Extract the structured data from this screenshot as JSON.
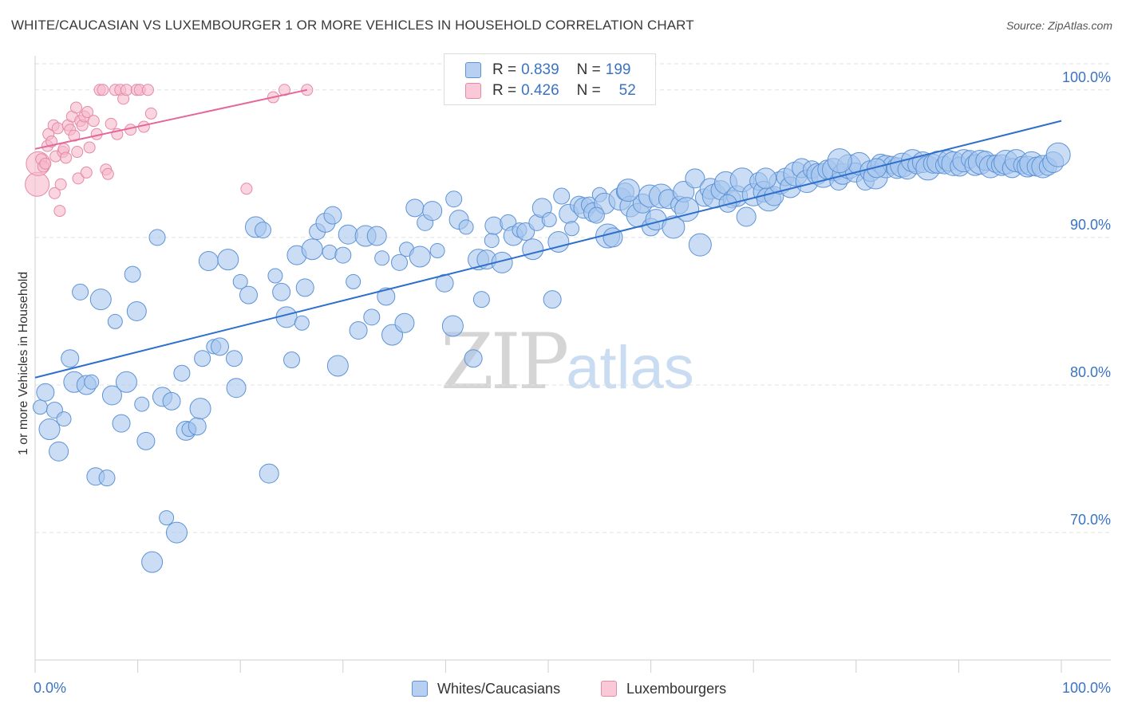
{
  "header": {
    "title": "WHITE/CAUCASIAN VS LUXEMBOURGER 1 OR MORE VEHICLES IN HOUSEHOLD CORRELATION CHART",
    "source": "Source: ZipAtlas.com"
  },
  "watermark": {
    "zip": "ZIP",
    "atlas": "atlas"
  },
  "legend": {
    "series": [
      {
        "r_label": "R =",
        "r_value": "0.839",
        "n_label": "N =",
        "n_value": "199",
        "color": "#9dbfe8",
        "border": "#5b8fd4"
      },
      {
        "r_label": "R =",
        "r_value": "0.426",
        "n_label": "N =",
        "n_value": "52",
        "color": "#f8b6ca",
        "border": "#e97aa0"
      }
    ]
  },
  "bottom_legend": [
    "Whites/Caucasians",
    "Luxembourgers"
  ],
  "colors": {
    "blue_fill": "#a7c6ee",
    "blue_stroke": "#5d93d6",
    "blue_line": "#2e6fcc",
    "pink_fill": "#f6b9cc",
    "pink_stroke": "#e48aa8",
    "pink_line": "#e5669a",
    "axis_text": "#3b73c4",
    "grid": "#e2e2e2"
  },
  "chart_data": {
    "type": "scatter",
    "title": "WHITE/CAUCASIAN VS LUXEMBOURGER 1 OR MORE VEHICLES IN HOUSEHOLD CORRELATION CHART",
    "xlabel": "",
    "ylabel": "1 or more Vehicles in Household",
    "xlim": [
      0,
      100
    ],
    "ylim": [
      60.5,
      101.5
    ],
    "x_tick_labels": [
      "0.0%",
      "100.0%"
    ],
    "y_ticks": [
      70,
      80,
      90,
      100
    ],
    "y_tick_labels": [
      "70.0%",
      "80.0%",
      "90.0%",
      "100.0%"
    ],
    "grid": true,
    "legend_position": "top-center",
    "series": [
      {
        "name": "Whites/Caucasians",
        "trend": [
          [
            0,
            80.5
          ],
          [
            100,
            97.9
          ]
        ],
        "points": [
          [
            0.5,
            78.5
          ],
          [
            1,
            79.5
          ],
          [
            1.4,
            77
          ],
          [
            1.9,
            78.3
          ],
          [
            2.3,
            75.5
          ],
          [
            2.8,
            77.7
          ],
          [
            3.4,
            81.8
          ],
          [
            3.8,
            80.2
          ],
          [
            4.4,
            86.3
          ],
          [
            5,
            80
          ],
          [
            5.5,
            80.2
          ],
          [
            5.9,
            73.8
          ],
          [
            6.4,
            85.8
          ],
          [
            7,
            73.7
          ],
          [
            7.5,
            79.3
          ],
          [
            7.8,
            84.3
          ],
          [
            8.4,
            77.4
          ],
          [
            8.9,
            80.2
          ],
          [
            9.5,
            87.5
          ],
          [
            9.9,
            85
          ],
          [
            10.4,
            78.7
          ],
          [
            10.8,
            76.2
          ],
          [
            11.4,
            68
          ],
          [
            11.9,
            90
          ],
          [
            12.4,
            79.2
          ],
          [
            12.8,
            71
          ],
          [
            13.3,
            78.9
          ],
          [
            13.8,
            70
          ],
          [
            14.3,
            80.8
          ],
          [
            14.7,
            76.9
          ],
          [
            15,
            77
          ],
          [
            15.8,
            77.2
          ],
          [
            16.1,
            78.4
          ],
          [
            16.3,
            81.8
          ],
          [
            16.9,
            88.4
          ],
          [
            17.4,
            82.6
          ],
          [
            18,
            82.6
          ],
          [
            18.8,
            88.5
          ],
          [
            19.4,
            81.8
          ],
          [
            19.6,
            79.8
          ],
          [
            20,
            87
          ],
          [
            20.8,
            86.1
          ],
          [
            21.5,
            90.7
          ],
          [
            22.2,
            90.5
          ],
          [
            22.8,
            74
          ],
          [
            23.4,
            87.4
          ],
          [
            24,
            86.3
          ],
          [
            24.5,
            84.6
          ],
          [
            25,
            81.7
          ],
          [
            25.5,
            88.8
          ],
          [
            26,
            84.2
          ],
          [
            26.3,
            86.6
          ],
          [
            27,
            89.2
          ],
          [
            27.5,
            90.4
          ],
          [
            28.3,
            91
          ],
          [
            28.7,
            89
          ],
          [
            29,
            91.5
          ],
          [
            29.5,
            81.3
          ],
          [
            30,
            88.8
          ],
          [
            30.5,
            90.2
          ],
          [
            31,
            87
          ],
          [
            31.5,
            83.7
          ],
          [
            32.2,
            90.1
          ],
          [
            32.8,
            84.6
          ],
          [
            33.3,
            90.1
          ],
          [
            33.8,
            88.6
          ],
          [
            34.2,
            86
          ],
          [
            34.8,
            83.4
          ],
          [
            35.5,
            88.3
          ],
          [
            36,
            84.2
          ],
          [
            36.2,
            89.2
          ],
          [
            37,
            92
          ],
          [
            37.5,
            88.7
          ],
          [
            38,
            91
          ],
          [
            38.7,
            91.8
          ],
          [
            39.2,
            89.1
          ],
          [
            39.9,
            86.9
          ],
          [
            40.7,
            84
          ],
          [
            40.8,
            92.6
          ],
          [
            41.3,
            91.2
          ],
          [
            42,
            90.7
          ],
          [
            42.7,
            81.8
          ],
          [
            43.2,
            88.5
          ],
          [
            43.5,
            85.8
          ],
          [
            44,
            88.5
          ],
          [
            44.5,
            89.8
          ],
          [
            44.7,
            90.8
          ],
          [
            45.5,
            88.3
          ],
          [
            46.1,
            91
          ],
          [
            46.6,
            90.1
          ],
          [
            47.2,
            90.5
          ],
          [
            47.8,
            90.4
          ],
          [
            48.5,
            89.2
          ],
          [
            48.9,
            91
          ],
          [
            49.4,
            92
          ],
          [
            50.1,
            91.2
          ],
          [
            50.4,
            85.8
          ],
          [
            51,
            89.7
          ],
          [
            51.3,
            92.8
          ],
          [
            52,
            91.6
          ],
          [
            52.3,
            90.6
          ],
          [
            53,
            92.2
          ],
          [
            53.5,
            92
          ],
          [
            54,
            92.2
          ],
          [
            54.4,
            91.7
          ],
          [
            55,
            92.9
          ],
          [
            55.5,
            92.3
          ],
          [
            55.8,
            90.1
          ],
          [
            56.3,
            90
          ],
          [
            57,
            92.6
          ],
          [
            57.5,
            93.1
          ],
          [
            58,
            92.1
          ],
          [
            58.8,
            91.5
          ],
          [
            59.2,
            92.3
          ],
          [
            59.9,
            92.8
          ],
          [
            60,
            90.7
          ],
          [
            60.5,
            91.2
          ],
          [
            61,
            92.8
          ],
          [
            61.7,
            92.6
          ],
          [
            62.2,
            90.7
          ],
          [
            62.8,
            92.2
          ],
          [
            63.2,
            93.1
          ],
          [
            63.5,
            91.9
          ],
          [
            64.3,
            94
          ],
          [
            64.8,
            89.5
          ],
          [
            65.2,
            92.7
          ],
          [
            65.8,
            93.3
          ],
          [
            66.2,
            92.8
          ],
          [
            66.8,
            93.2
          ],
          [
            67.3,
            93.7
          ],
          [
            67.9,
            92.6
          ],
          [
            68.4,
            92.8
          ],
          [
            68.9,
            93.9
          ],
          [
            69.3,
            91.4
          ],
          [
            70,
            92.9
          ],
          [
            70.5,
            93.8
          ],
          [
            71,
            93.1
          ],
          [
            71.5,
            92.6
          ],
          [
            72,
            92.8
          ],
          [
            72.6,
            93.7
          ],
          [
            73.1,
            94.1
          ],
          [
            73.6,
            93.4
          ],
          [
            74.1,
            94.3
          ],
          [
            74.7,
            94.7
          ],
          [
            75.2,
            93.8
          ],
          [
            75.7,
            94.6
          ],
          [
            76.2,
            94.3
          ],
          [
            76.8,
            94.2
          ],
          [
            77.2,
            94.6
          ],
          [
            77.8,
            94.6
          ],
          [
            78.3,
            93.8
          ],
          [
            78.7,
            94.3
          ],
          [
            79.3,
            94.8
          ],
          [
            79.9,
            94.4
          ],
          [
            80.3,
            95
          ],
          [
            80.9,
            93.8
          ],
          [
            81.4,
            94.5
          ],
          [
            81.9,
            94.1
          ],
          [
            82.4,
            95
          ],
          [
            82.9,
            94.8
          ],
          [
            83.5,
            94.9
          ],
          [
            84,
            94.7
          ],
          [
            84.5,
            94.9
          ],
          [
            85,
            94.6
          ],
          [
            85.5,
            95.2
          ],
          [
            85.9,
            94.9
          ],
          [
            86.5,
            95.1
          ],
          [
            87,
            94.7
          ],
          [
            87.5,
            95
          ],
          [
            88,
            95.1
          ],
          [
            88.6,
            94.9
          ],
          [
            89,
            95.2
          ],
          [
            89.5,
            95
          ],
          [
            90.1,
            94.8
          ],
          [
            90.5,
            95.2
          ],
          [
            91.1,
            95.3
          ],
          [
            91.6,
            94.9
          ],
          [
            92.1,
            95.1
          ],
          [
            92.6,
            95.2
          ],
          [
            93.1,
            94.8
          ],
          [
            93.6,
            95
          ],
          [
            94.2,
            94.9
          ],
          [
            94.6,
            95.1
          ],
          [
            95.2,
            94.7
          ],
          [
            95.6,
            95.2
          ],
          [
            96.2,
            94.9
          ],
          [
            96.7,
            94.8
          ],
          [
            97.1,
            95
          ],
          [
            97.6,
            94.8
          ],
          [
            98.2,
            94.8
          ],
          [
            98.7,
            94.8
          ],
          [
            99.2,
            95.1
          ],
          [
            99.7,
            95.6
          ],
          [
            54.7,
            91.5
          ],
          [
            57.8,
            93.2
          ],
          [
            67.5,
            92.3
          ],
          [
            71.2,
            94
          ],
          [
            78.4,
            95.2
          ],
          [
            82,
            94.7
          ]
        ]
      },
      {
        "name": "Luxembourgers",
        "trend": [
          [
            0,
            96
          ],
          [
            26.5,
            100
          ]
        ],
        "points": [
          [
            0.2,
            93.6
          ],
          [
            0.3,
            95
          ],
          [
            0.6,
            95.3
          ],
          [
            0.8,
            94.8
          ],
          [
            1,
            95
          ],
          [
            1.2,
            96.2
          ],
          [
            1.3,
            97
          ],
          [
            1.6,
            96.5
          ],
          [
            1.8,
            97.6
          ],
          [
            1.9,
            93
          ],
          [
            2,
            95.5
          ],
          [
            2.2,
            97.4
          ],
          [
            2.4,
            91.8
          ],
          [
            2.5,
            93.6
          ],
          [
            2.7,
            95.8
          ],
          [
            2.8,
            96
          ],
          [
            3,
            95.4
          ],
          [
            3.2,
            97.6
          ],
          [
            3.4,
            97.3
          ],
          [
            3.6,
            98.2
          ],
          [
            3.8,
            96.9
          ],
          [
            4,
            98.8
          ],
          [
            4.1,
            95.8
          ],
          [
            4.2,
            94
          ],
          [
            4.4,
            97.9
          ],
          [
            4.6,
            97.6
          ],
          [
            4.8,
            98.2
          ],
          [
            5,
            94.4
          ],
          [
            5.1,
            98.5
          ],
          [
            5.3,
            96.1
          ],
          [
            5.7,
            97.9
          ],
          [
            6,
            97
          ],
          [
            6.3,
            100
          ],
          [
            6.6,
            100
          ],
          [
            6.9,
            94.6
          ],
          [
            7.1,
            94.3
          ],
          [
            7.4,
            97.7
          ],
          [
            7.8,
            100
          ],
          [
            8,
            97
          ],
          [
            8.3,
            100
          ],
          [
            8.6,
            99.4
          ],
          [
            8.9,
            100
          ],
          [
            9.3,
            97.3
          ],
          [
            9.9,
            100
          ],
          [
            10.2,
            100
          ],
          [
            10.6,
            97.5
          ],
          [
            11,
            100
          ],
          [
            11.3,
            98.4
          ],
          [
            20.6,
            93.3
          ],
          [
            23.2,
            99.5
          ],
          [
            24.3,
            100
          ],
          [
            26.5,
            100
          ]
        ]
      }
    ]
  }
}
